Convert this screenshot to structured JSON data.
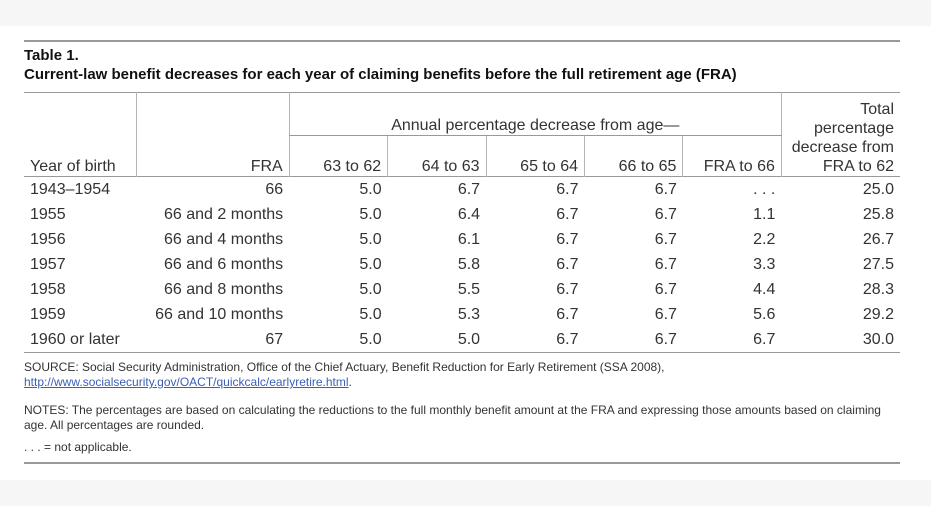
{
  "table_title": "Table 1.",
  "table_subtitle": "Current-law benefit decreases for each year of claiming benefits before the full retirement age (FRA)",
  "header": {
    "year_of_birth": "Year of birth",
    "fra": "FRA",
    "annual_group": "Annual percentage decrease from age—",
    "total_line1": "Total",
    "total_line2": "percentage",
    "total_line3": "decrease from",
    "total_line4": "FRA to 62",
    "sub": [
      "63 to 62",
      "64 to 63",
      "65 to 64",
      "66 to 65",
      "FRA to 66"
    ]
  },
  "rows": [
    {
      "year": "1943–1954",
      "fra": "66",
      "v1": "5.0",
      "v2": "6.7",
      "v3": "6.7",
      "v4": "6.7",
      "v5": ". . .",
      "total": "25.0"
    },
    {
      "year": "1955",
      "fra": "66 and 2 months",
      "v1": "5.0",
      "v2": "6.4",
      "v3": "6.7",
      "v4": "6.7",
      "v5": "1.1",
      "total": "25.8"
    },
    {
      "year": "1956",
      "fra": "66 and 4 months",
      "v1": "5.0",
      "v2": "6.1",
      "v3": "6.7",
      "v4": "6.7",
      "v5": "2.2",
      "total": "26.7"
    },
    {
      "year": "1957",
      "fra": "66 and 6 months",
      "v1": "5.0",
      "v2": "5.8",
      "v3": "6.7",
      "v4": "6.7",
      "v5": "3.3",
      "total": "27.5"
    },
    {
      "year": "1958",
      "fra": "66 and 8 months",
      "v1": "5.0",
      "v2": "5.5",
      "v3": "6.7",
      "v4": "6.7",
      "v5": "4.4",
      "total": "28.3"
    },
    {
      "year": "1959",
      "fra": "66 and 10 months",
      "v1": "5.0",
      "v2": "5.3",
      "v3": "6.7",
      "v4": "6.7",
      "v5": "5.6",
      "total": "29.2"
    },
    {
      "year": "1960 or later",
      "fra": "67",
      "v1": "5.0",
      "v2": "5.0",
      "v3": "6.7",
      "v4": "6.7",
      "v5": "6.7",
      "total": "30.0"
    }
  ],
  "source_text": "SOURCE: Social Security Administration, Office of the Chief Actuary, Benefit Reduction for Early Retirement (SSA 2008),",
  "source_link": "http://www.socialsecurity.gov/OACT/quickcalc/earlyretire.html",
  "source_suffix": ".",
  "notes_text": "NOTES: The percentages are based on calculating the reductions to the full monthly benefit amount at the FRA and expressing those amounts based on claiming age. All percentages are rounded.",
  "na_text": ". . . = not applicable."
}
